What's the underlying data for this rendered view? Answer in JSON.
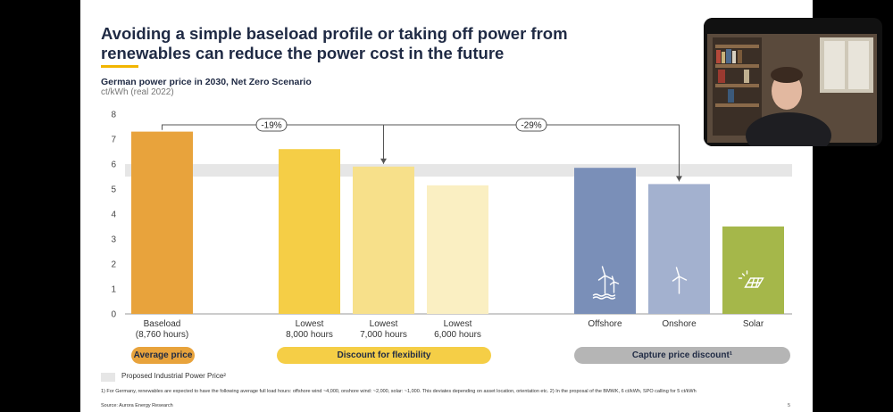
{
  "title": "Avoiding a simple baseload profile or taking off power from renewables can reduce the power cost in the future",
  "subtitle": "German power price in 2030, Net Zero Scenario",
  "units": "ct/kWh (real 2022)",
  "chart_data": {
    "type": "bar",
    "categories": [
      [
        "Baseload",
        "(8,760 hours)"
      ],
      [
        "Lowest",
        "8,000 hours"
      ],
      [
        "Lowest",
        "7,000 hours"
      ],
      [
        "Lowest",
        "6,000 hours"
      ],
      [
        "Offshore",
        ""
      ],
      [
        "Onshore",
        ""
      ],
      [
        "Solar",
        ""
      ]
    ],
    "values": [
      7.3,
      6.6,
      5.9,
      5.15,
      5.85,
      5.2,
      3.5
    ],
    "colors": [
      "#e8a33c",
      "#f5ce46",
      "#f7e08a",
      "#faefc2",
      "#7a8fb8",
      "#a3b1cf",
      "#a5b74a"
    ],
    "icons": [
      "",
      "",
      "",
      "",
      "offshore-wind-icon",
      "onshore-wind-icon",
      "solar-panel-icon"
    ],
    "yticks": [
      0,
      1,
      2,
      3,
      4,
      5,
      6,
      7,
      8
    ],
    "ylim": [
      0,
      8
    ],
    "band": {
      "label": "Proposed Industrial Power Price²",
      "from": 5.5,
      "to": 6.0,
      "color": "#e6e6e6"
    },
    "annotations": [
      {
        "label": "-19%",
        "from_index": 0,
        "to_index": 2
      },
      {
        "label": "-29%",
        "from_index": 0,
        "to_index": 5
      }
    ],
    "groups": [
      {
        "label": "Average price",
        "color": "#e8a33c"
      },
      {
        "label": "Discount for flexibility",
        "color": "#f5ce46"
      },
      {
        "label": "Capture price discount¹",
        "color": "#b5b5b5"
      }
    ]
  },
  "footnote": "1) For Germany, renewables are expected to have the following average full load hours: offshore wind ~4,000, onshore wind: ~2,000, solar: ~1,000. This deviates depending on asset location, orientation etc. 2) In the proposal of the BMWK, 6 ct/kWh, SPO calling for 5 ct/kWh",
  "source": "Source: Aurora Energy Research",
  "page_number": "5"
}
